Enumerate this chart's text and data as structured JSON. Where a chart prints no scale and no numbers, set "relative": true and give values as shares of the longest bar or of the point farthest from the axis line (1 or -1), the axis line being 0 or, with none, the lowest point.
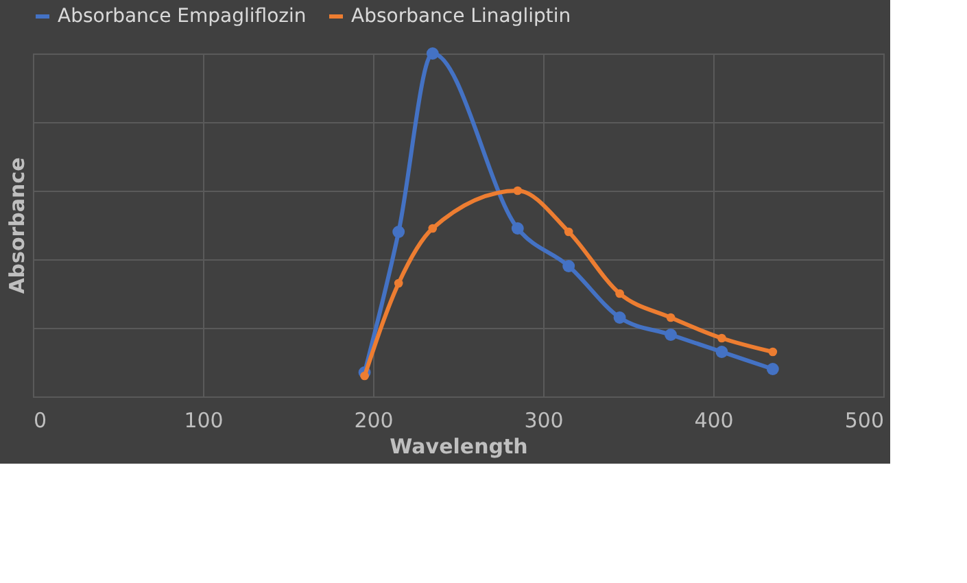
{
  "chart_data": {
    "type": "line",
    "xlabel": "Wavelength",
    "ylabel": "Absorbance",
    "relative": true,
    "x": [
      195,
      215,
      235,
      285,
      315,
      345,
      375,
      405,
      435
    ],
    "xlim": [
      0,
      500
    ],
    "xticks": [
      0,
      100,
      200,
      300,
      400,
      500
    ],
    "series": [
      {
        "name": "Absorbance Empagliflozin",
        "color": "#4472c4",
        "values": [
          0.07,
          0.48,
          1,
          0.49,
          0.38,
          0.23,
          0.18,
          0.13,
          0.08
        ]
      },
      {
        "name": "Absorbance Linagliptin",
        "color": "#ed7d31",
        "values": [
          0.06,
          0.33,
          0.49,
          0.6,
          0.48,
          0.3,
          0.23,
          0.17,
          0.13
        ]
      }
    ],
    "grid": true,
    "legend": "top",
    "marker": "circle",
    "line_style": "solid"
  }
}
